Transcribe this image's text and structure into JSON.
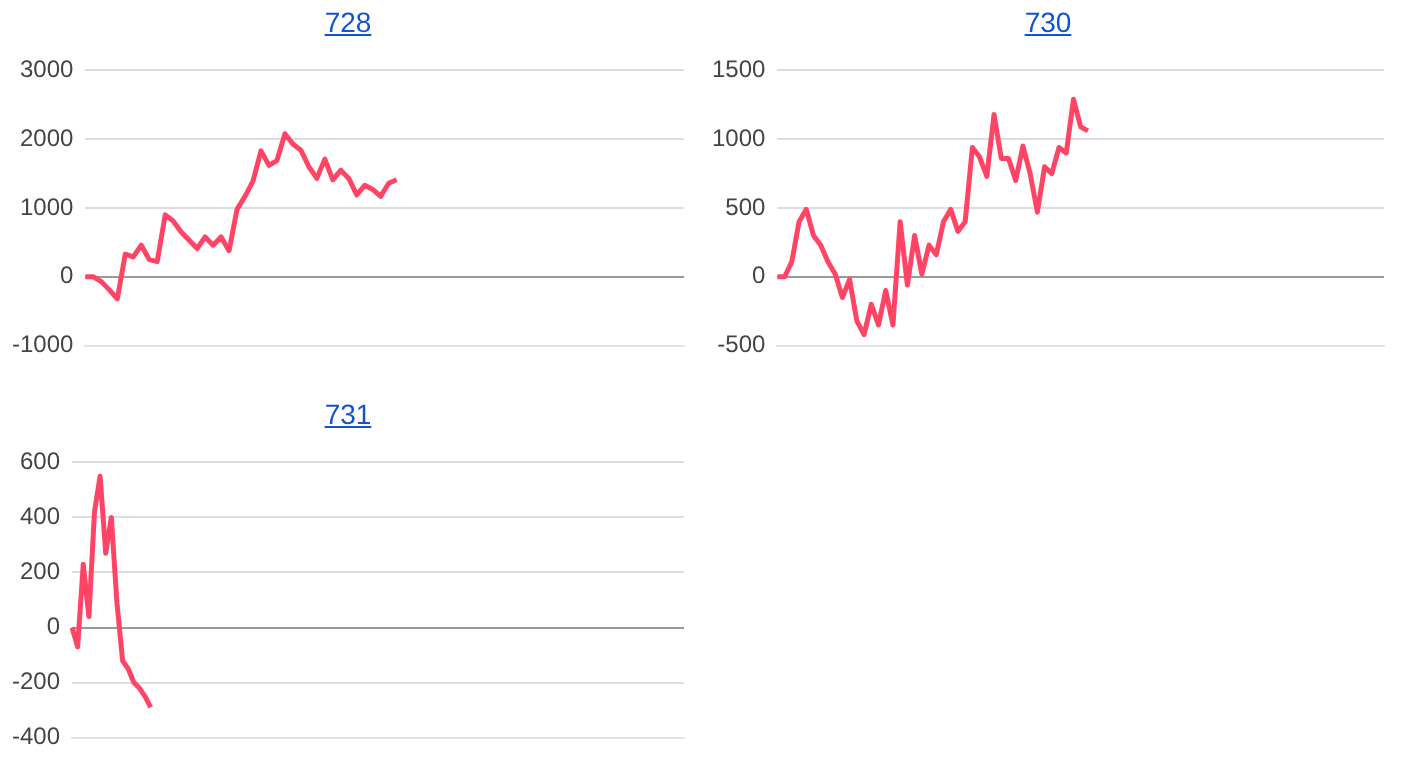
{
  "chart_data": [
    {
      "type": "line",
      "title": "728",
      "categories": [
        null,
        null,
        null,
        null,
        null,
        null,
        null,
        null,
        null,
        null,
        null,
        null,
        null,
        null,
        null,
        null,
        null,
        null,
        null,
        null,
        null,
        null,
        null,
        null,
        null,
        null,
        null,
        null,
        null,
        null,
        null,
        null,
        null,
        null,
        null,
        null,
        null,
        null,
        null,
        null,
        null,
        null,
        null,
        null,
        null,
        null,
        null,
        null,
        null,
        null,
        null,
        null,
        null,
        null,
        null,
        null,
        null,
        null,
        null,
        null,
        null,
        null,
        null,
        null,
        null,
        null,
        null,
        null,
        null,
        null,
        null,
        null,
        null,
        null,
        null,
        null
      ],
      "series": [
        {
          "color": "#ff4466",
          "values": [
            0,
            0,
            -70,
            -190,
            -320,
            330,
            290,
            460,
            250,
            220,
            900,
            810,
            650,
            530,
            410,
            580,
            460,
            580,
            380,
            980,
            1170,
            1390,
            1830,
            1620,
            1690,
            2080,
            1930,
            1840,
            1600,
            1430,
            1710,
            1410,
            1550,
            1430,
            1190,
            1330,
            1270,
            1170,
            1360,
            1410,
            null,
            null,
            null,
            null,
            null,
            null,
            null,
            null,
            null,
            null,
            null,
            null,
            null,
            null,
            null,
            null,
            null,
            null,
            null,
            null,
            null,
            null,
            null,
            null,
            null,
            null,
            null,
            null,
            null,
            null,
            null,
            null,
            null,
            null,
            null,
            null
          ]
        }
      ],
      "ylim": [
        -1000,
        3000
      ],
      "yticks": [
        -1000,
        0,
        1000,
        2000,
        3000
      ],
      "grid": "y",
      "tick_labels": "y",
      "legend": false,
      "marker": "none"
    },
    {
      "type": "line",
      "title": "730",
      "categories": [
        null,
        null,
        null,
        null,
        null,
        null,
        null,
        null,
        null,
        null,
        null,
        null,
        null,
        null,
        null,
        null,
        null,
        null,
        null,
        null,
        null,
        null,
        null,
        null,
        null,
        null,
        null,
        null,
        null,
        null,
        null,
        null,
        null,
        null,
        null,
        null,
        null,
        null,
        null,
        null,
        null,
        null,
        null,
        null,
        null,
        null,
        null,
        null,
        null,
        null,
        null,
        null,
        null,
        null,
        null,
        null,
        null,
        null,
        null,
        null,
        null,
        null,
        null,
        null,
        null,
        null,
        null,
        null,
        null,
        null,
        null,
        null,
        null,
        null,
        null,
        null,
        null,
        null,
        null,
        null,
        null,
        null,
        null,
        null,
        null
      ],
      "series": [
        {
          "color": "#ff4466",
          "values": [
            0,
            0,
            110,
            400,
            490,
            300,
            230,
            110,
            20,
            -150,
            -20,
            -320,
            -420,
            -200,
            -350,
            -100,
            -350,
            400,
            -60,
            300,
            20,
            230,
            160,
            400,
            490,
            330,
            400,
            940,
            870,
            730,
            1180,
            860,
            860,
            700,
            950,
            750,
            470,
            800,
            750,
            940,
            900,
            1290,
            1090,
            1060,
            null,
            null,
            null,
            null,
            null,
            null,
            null,
            null,
            null,
            null,
            null,
            null,
            null,
            null,
            null,
            null,
            null,
            null,
            null,
            null,
            null,
            null,
            null,
            null,
            null,
            null,
            null,
            null,
            null,
            null,
            null,
            null,
            null,
            null,
            null,
            null,
            null,
            null,
            null,
            null,
            null
          ]
        }
      ],
      "ylim": [
        -500,
        1500
      ],
      "yticks": [
        -500,
        0,
        500,
        1000,
        1500
      ],
      "grid": "y",
      "tick_labels": "y",
      "legend": false,
      "marker": "none"
    },
    {
      "type": "line",
      "title": "731",
      "categories": [
        null,
        null,
        null,
        null,
        null,
        null,
        null,
        null,
        null,
        null,
        null,
        null,
        null,
        null,
        null,
        null,
        null,
        null,
        null,
        null,
        null,
        null,
        null,
        null,
        null,
        null,
        null,
        null,
        null,
        null,
        null,
        null,
        null,
        null,
        null,
        null,
        null,
        null,
        null,
        null,
        null,
        null,
        null,
        null,
        null,
        null,
        null,
        null,
        null,
        null,
        null,
        null,
        null,
        null,
        null,
        null,
        null,
        null,
        null,
        null,
        null,
        null,
        null,
        null,
        null,
        null,
        null,
        null,
        null,
        null,
        null,
        null,
        null,
        null,
        null,
        null,
        null,
        null,
        null,
        null,
        null,
        null,
        null,
        null,
        null,
        null,
        null,
        null,
        null,
        null,
        null,
        null,
        null,
        null,
        null,
        null,
        null,
        null,
        null,
        null,
        null,
        null,
        null,
        null,
        null,
        null,
        null,
        null,
        null,
        null
      ],
      "series": [
        {
          "color": "#ff4466",
          "values": [
            0,
            -70,
            230,
            40,
            420,
            550,
            270,
            400,
            90,
            -120,
            -150,
            -200,
            -220,
            -250,
            -290,
            null,
            null,
            null,
            null,
            null,
            null,
            null,
            null,
            null,
            null,
            null,
            null,
            null,
            null,
            null,
            null,
            null,
            null,
            null,
            null,
            null,
            null,
            null,
            null,
            null,
            null,
            null,
            null,
            null,
            null,
            null,
            null,
            null,
            null,
            null,
            null,
            null,
            null,
            null,
            null,
            null,
            null,
            null,
            null,
            null,
            null,
            null,
            null,
            null,
            null,
            null,
            null,
            null,
            null,
            null,
            null,
            null,
            null,
            null,
            null,
            null,
            null,
            null,
            null,
            null,
            null,
            null,
            null,
            null,
            null,
            null,
            null,
            null,
            null,
            null,
            null,
            null,
            null,
            null,
            null,
            null,
            null,
            null,
            null,
            null,
            null,
            null,
            null,
            null,
            null,
            null,
            null,
            null,
            null,
            null
          ]
        }
      ],
      "ylim": [
        -400,
        600
      ],
      "yticks": [
        -400,
        -200,
        0,
        200,
        400,
        600
      ],
      "grid": "y",
      "tick_labels": "y",
      "legend": false,
      "marker": "none"
    }
  ]
}
